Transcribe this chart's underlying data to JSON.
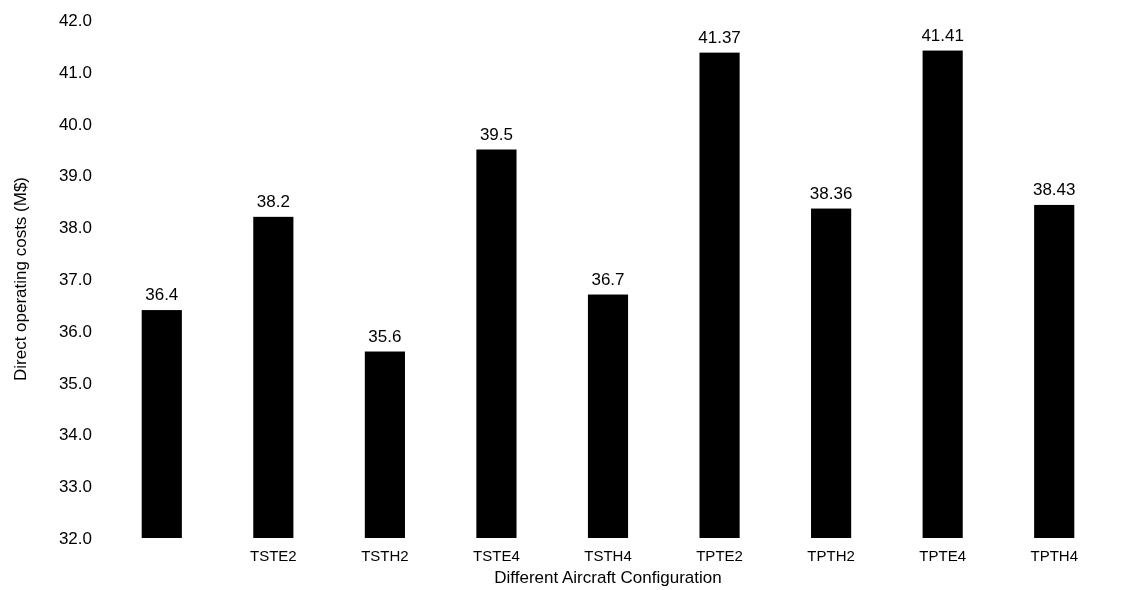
{
  "chart_data": {
    "type": "bar",
    "xlabel": "Different Aircraft  Configuration",
    "ylabel": "Direct operating costs (M$)",
    "categories": [
      null,
      "TSTE2",
      "TSTH2",
      "TSTE4",
      "TSTH4",
      "TPTE2",
      "TPTH2",
      "TPTE4",
      "TPTH4"
    ],
    "values": [
      36.4,
      38.2,
      35.6,
      39.5,
      36.7,
      41.37,
      38.36,
      41.41,
      38.43
    ],
    "color": "#000000",
    "data_labels": true,
    "grid": false,
    "ylim": [
      32,
      42
    ],
    "yticks": [
      {
        "value": 32,
        "label": "32.0"
      },
      {
        "value": 33,
        "label": "33.0"
      },
      {
        "value": 34,
        "label": "34.0"
      },
      {
        "value": 35,
        "label": "35.0"
      },
      {
        "value": 36,
        "label": "36.0"
      },
      {
        "value": 37,
        "label": "37.0"
      },
      {
        "value": 38,
        "label": "38.0"
      },
      {
        "value": 39,
        "label": "39.0"
      },
      {
        "value": 40,
        "label": "40.0"
      },
      {
        "value": 41,
        "label": "41.0"
      },
      {
        "value": 42,
        "label": "42.0"
      }
    ]
  }
}
